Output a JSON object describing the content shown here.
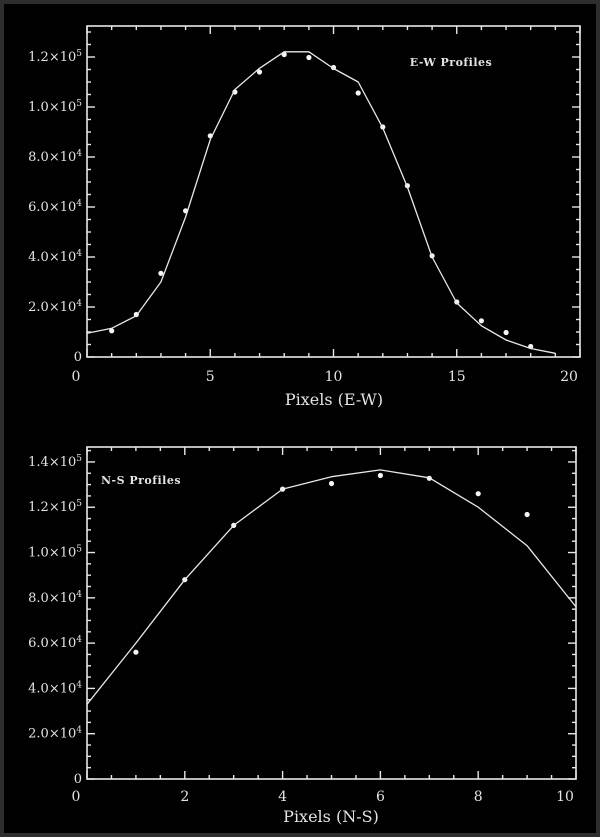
{
  "colors": {
    "background": "#010101",
    "screen_border": "#2e2e2e",
    "foreground": "#e8e8e8",
    "marker": "#f5f5f5",
    "text": "#e4e4e4"
  },
  "artifact": {
    "description": "small white mark on right screen edge"
  },
  "chart_data": [
    {
      "type": "scatter",
      "panel": "top",
      "annotation": "E-W Profiles",
      "xlabel": "Pixels (E-W)",
      "ylabel": "",
      "xlim": [
        0,
        20
      ],
      "ylim": [
        0,
        132400
      ],
      "grid": false,
      "xticks": [
        0,
        5,
        10,
        15,
        20
      ],
      "xtick_labels": [
        "0",
        "5",
        "10",
        "15",
        "20"
      ],
      "x_minor_step": 1,
      "yticks": [
        0,
        20000,
        40000,
        60000,
        80000,
        100000,
        120000
      ],
      "ytick_labels": [
        "0",
        "2.0×10^4",
        "4.0×10^4",
        "6.0×10^4",
        "8.0×10^4",
        "1.0×10^5",
        "1.2×10^5"
      ],
      "y_minor_step": 5000,
      "series": [
        {
          "name": "measured-profile-points",
          "style": "scatter",
          "x": [
            1,
            2,
            3,
            4,
            5,
            6,
            7,
            8,
            9,
            10,
            11,
            12,
            13,
            14,
            15,
            16,
            17,
            18
          ],
          "y": [
            10500,
            17000,
            33500,
            58500,
            88500,
            106000,
            114000,
            121000,
            119800,
            115800,
            105600,
            92000,
            68500,
            40500,
            22000,
            14500,
            9800,
            4200
          ]
        },
        {
          "name": "fit-line",
          "style": "line",
          "x": [
            0,
            1,
            2,
            3,
            4,
            5,
            6,
            7,
            8,
            9,
            10,
            11,
            12,
            13,
            14,
            15,
            16,
            17,
            18,
            19
          ],
          "y": [
            9500,
            11500,
            16500,
            30000,
            56000,
            87000,
            107000,
            115500,
            122100,
            122100,
            115400,
            110000,
            91600,
            68000,
            40000,
            21600,
            12500,
            6800,
            3400,
            1500
          ]
        }
      ]
    },
    {
      "type": "scatter",
      "panel": "bottom",
      "annotation": "N-S Profiles",
      "xlabel": "Pixels (N-S)",
      "ylabel": "",
      "xlim": [
        0,
        10
      ],
      "ylim": [
        0,
        146600
      ],
      "grid": false,
      "xticks": [
        0,
        2,
        4,
        6,
        8,
        10
      ],
      "xtick_labels": [
        "0",
        "2",
        "4",
        "6",
        "8",
        "10"
      ],
      "x_minor_step": 0.5,
      "yticks": [
        0,
        20000,
        40000,
        60000,
        80000,
        100000,
        120000,
        140000
      ],
      "ytick_labels": [
        "0",
        "2.0×10^4",
        "4.0×10^4",
        "6.0×10^4",
        "8.0×10^4",
        "1.0×10^5",
        "1.2×10^5",
        "1.4×10^5"
      ],
      "y_minor_step": 5000,
      "series": [
        {
          "name": "measured-profile-points",
          "style": "scatter",
          "x": [
            1,
            2,
            3,
            4,
            5,
            6,
            7,
            8,
            9
          ],
          "y": [
            56000,
            88000,
            112000,
            128000,
            130500,
            134000,
            132800,
            126000,
            116800
          ]
        },
        {
          "name": "fit-line",
          "style": "line",
          "x": [
            0,
            1,
            2,
            3,
            4,
            5,
            6,
            7,
            8,
            9,
            10
          ],
          "y": [
            33000,
            60000,
            88000,
            112000,
            128000,
            133500,
            136500,
            133000,
            120000,
            103000,
            76000
          ]
        }
      ]
    }
  ]
}
